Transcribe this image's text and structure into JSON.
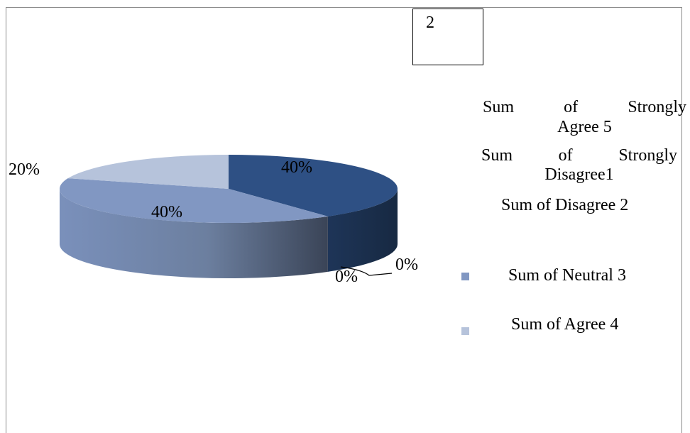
{
  "chart_data": {
    "type": "pie",
    "title": "",
    "box_label": "2",
    "slices": [
      {
        "label": "Sum of Strongly Agree 5",
        "value": 40,
        "label_text": "40%",
        "color": "#2E5084"
      },
      {
        "label": "Sum of Strongly Disagree1",
        "value": 0,
        "label_text": "0%",
        "color": "#223C63"
      },
      {
        "label": "Sum of Disagree 2",
        "value": 0,
        "label_text": "0%",
        "color": "#3B5F94"
      },
      {
        "label": "Sum of Neutral 3",
        "value": 40,
        "label_text": "40%",
        "color": "#8197C2"
      },
      {
        "label": "Sum of Agree 4",
        "value": 20,
        "label_text": "20%",
        "color": "#B6C3DB"
      }
    ],
    "legend": {
      "position": "right",
      "entries": [
        {
          "line1": "Sum of Strongly",
          "line2": "Agree 5"
        },
        {
          "line1": "Sum of Strongly",
          "line2": "Disagree1"
        },
        {
          "line1": "Sum of Disagree 2"
        },
        {
          "line1": "Sum of Neutral 3",
          "swatch_color": "#8197C2"
        },
        {
          "line1": "Sum of Agree 4",
          "swatch_color": "#B6C3DB"
        }
      ]
    }
  }
}
